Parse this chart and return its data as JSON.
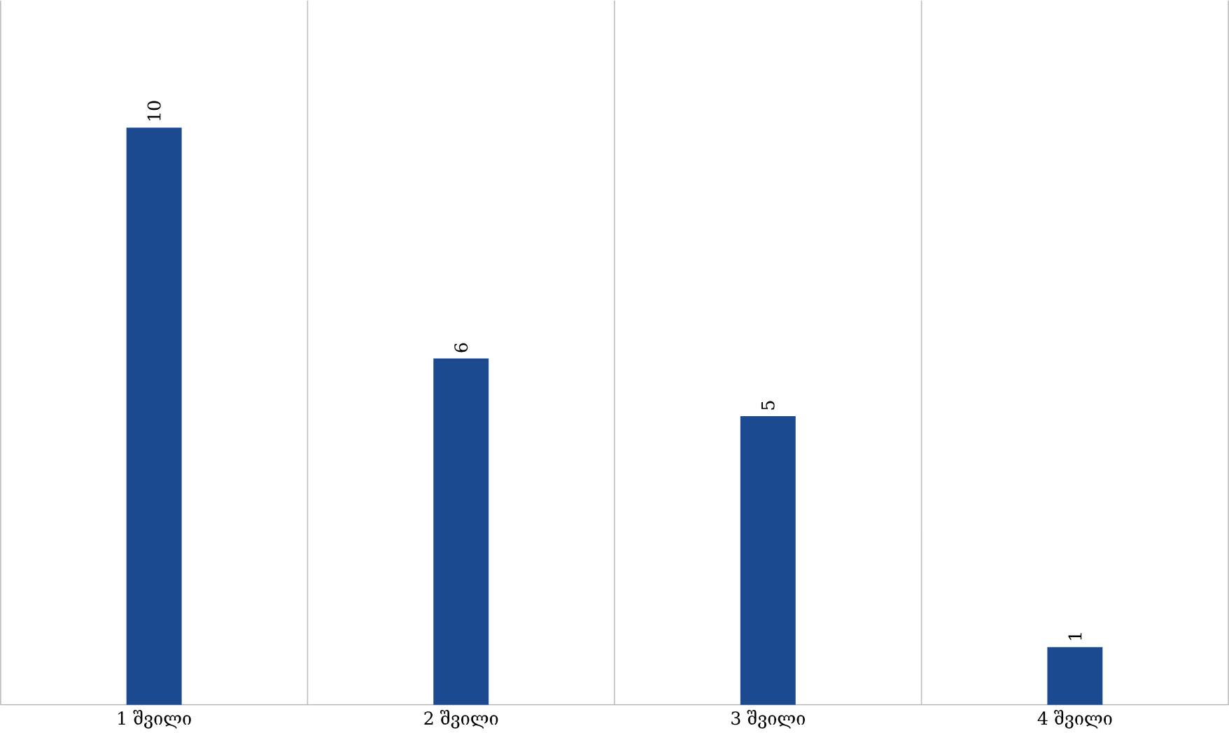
{
  "chart_data": {
    "type": "bar",
    "categories": [
      "1 შვილი",
      "2 შვილი",
      "3 შვილი",
      "4 შვილი"
    ],
    "values": [
      10,
      6,
      5,
      1
    ],
    "color": "#1c4a91",
    "data_labels": true,
    "grid": "x"
  }
}
